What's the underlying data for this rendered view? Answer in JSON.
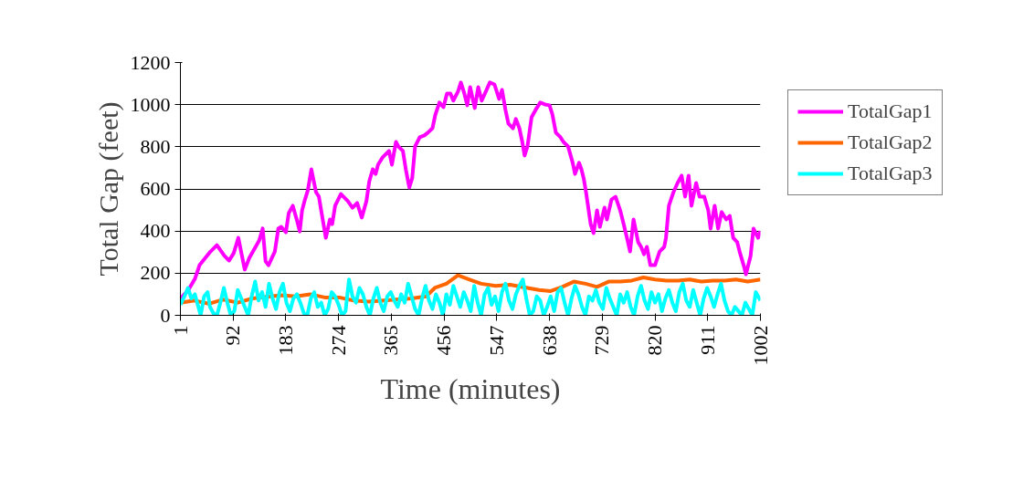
{
  "chart_data": {
    "type": "line",
    "xlabel": "Time (minutes)",
    "ylabel": "Total Gap (feet)",
    "xlim": [
      1,
      1002
    ],
    "xticks": [
      1,
      92,
      183,
      274,
      365,
      456,
      547,
      638,
      729,
      820,
      911,
      1002
    ],
    "ylim": [
      0,
      1200
    ],
    "yticks": [
      0,
      200,
      400,
      600,
      800,
      1000,
      1200
    ],
    "grid": "y",
    "legend": "right",
    "marker": "none",
    "line_style": "solid",
    "series": [
      {
        "name": "TotalGap1",
        "color": "#ff00ff",
        "x": [
          1,
          14,
          26,
          34,
          53,
          64,
          77,
          85,
          93,
          101,
          112,
          120,
          137,
          143,
          148,
          153,
          164,
          170,
          175,
          183,
          188,
          195,
          203,
          207,
          211,
          216,
          221,
          227,
          235,
          240,
          246,
          252,
          259,
          263,
          268,
          278,
          290,
          298,
          306,
          314,
          322,
          327,
          333,
          338,
          342,
          350,
          361,
          366,
          373,
          377,
          385,
          390,
          396,
          401,
          406,
          414,
          422,
          428,
          436,
          441,
          448,
          455,
          461,
          467,
          472,
          480,
          485,
          490,
          496,
          501,
          509,
          515,
          521,
          528,
          535,
          543,
          551,
          556,
          562,
          567,
          575,
          580,
          586,
          591,
          595,
          600,
          607,
          614,
          622,
          630,
          638,
          643,
          649,
          657,
          662,
          670,
          678,
          682,
          689,
          693,
          697,
          701,
          709,
          714,
          720,
          725,
          733,
          737,
          745,
          752,
          760,
          764,
          772,
          777,
          783,
          791,
          796,
          801,
          806,
          812,
          820,
          828,
          836,
          839,
          844,
          852,
          859,
          866,
          872,
          878,
          883,
          891,
          897,
          905,
          912,
          916,
          923,
          929,
          935,
          943,
          949,
          955,
          962,
          966,
          973,
          977,
          985,
          990,
          998,
          1002
        ],
        "values": [
          80,
          117,
          173,
          238,
          303,
          333,
          282,
          260,
          295,
          368,
          217,
          273,
          355,
          412,
          256,
          238,
          303,
          412,
          420,
          394,
          485,
          520,
          442,
          398,
          498,
          550,
          594,
          693,
          585,
          563,
          464,
          368,
          455,
          433,
          520,
          576,
          542,
          511,
          533,
          464,
          542,
          637,
          693,
          671,
          715,
          750,
          780,
          715,
          823,
          802,
          780,
          693,
          607,
          650,
          802,
          845,
          854,
          867,
          888,
          953,
          1010,
          988,
          1053,
          1053,
          1019,
          1062,
          1105,
          1062,
          997,
          1083,
          984,
          1083,
          1019,
          1062,
          1105,
          1096,
          1027,
          1070,
          975,
          910,
          888,
          932,
          888,
          823,
          758,
          802,
          940,
          975,
          1010,
          1001,
          997,
          953,
          867,
          845,
          823,
          802,
          724,
          671,
          724,
          693,
          650,
          585,
          433,
          390,
          498,
          420,
          511,
          455,
          550,
          563,
          498,
          455,
          364,
          303,
          455,
          347,
          325,
          290,
          325,
          238,
          238,
          303,
          325,
          368,
          520,
          585,
          628,
          663,
          563,
          663,
          520,
          628,
          563,
          563,
          498,
          412,
          520,
          412,
          490,
          455,
          472,
          368,
          347,
          303,
          238,
          195,
          282,
          412,
          368,
          400
        ]
      },
      {
        "name": "TotalGap2",
        "color": "#ff6600",
        "x": [
          1,
          25,
          50,
          75,
          100,
          125,
          175,
          200,
          225,
          250,
          275,
          300,
          325,
          400,
          425,
          440,
          460,
          480,
          500,
          520,
          545,
          570,
          600,
          620,
          640,
          660,
          680,
          700,
          720,
          740,
          760,
          780,
          800,
          820,
          840,
          860,
          880,
          900,
          920,
          940,
          960,
          980,
          1002
        ],
        "values": [
          60,
          70,
          55,
          75,
          60,
          80,
          95,
          90,
          100,
          85,
          85,
          70,
          65,
          80,
          90,
          130,
          150,
          190,
          170,
          150,
          140,
          145,
          130,
          120,
          115,
          135,
          160,
          150,
          135,
          160,
          160,
          165,
          180,
          170,
          165,
          165,
          170,
          160,
          165,
          165,
          170,
          160,
          170
        ]
      },
      {
        "name": "TotalGap3",
        "color": "#00ffff",
        "x": [
          1,
          8,
          14,
          20,
          26,
          32,
          36,
          42,
          48,
          52,
          58,
          64,
          70,
          76,
          82,
          88,
          94,
          100,
          106,
          112,
          118,
          124,
          130,
          136,
          142,
          148,
          154,
          160,
          166,
          172,
          178,
          184,
          190,
          196,
          202,
          208,
          214,
          220,
          226,
          232,
          238,
          244,
          250,
          256,
          262,
          268,
          274,
          280,
          286,
          292,
          298,
          304,
          310,
          316,
          322,
          328,
          334,
          340,
          346,
          352,
          358,
          364,
          370,
          376,
          382,
          388,
          394,
          400,
          406,
          412,
          418,
          424,
          430,
          436,
          442,
          448,
          454,
          460,
          466,
          472,
          478,
          484,
          490,
          496,
          502,
          508,
          514,
          520,
          526,
          532,
          538,
          544,
          550,
          556,
          562,
          568,
          574,
          580,
          586,
          592,
          598,
          604,
          610,
          616,
          622,
          628,
          634,
          640,
          646,
          652,
          658,
          664,
          670,
          676,
          682,
          688,
          694,
          700,
          706,
          712,
          718,
          724,
          730,
          736,
          742,
          748,
          754,
          760,
          766,
          772,
          778,
          784,
          790,
          796,
          802,
          808,
          814,
          820,
          826,
          832,
          838,
          844,
          850,
          856,
          862,
          868,
          874,
          880,
          886,
          892,
          898,
          904,
          910,
          916,
          922,
          928,
          934,
          940,
          946,
          952,
          958,
          964,
          970,
          976,
          982,
          988,
          994,
          1002
        ],
        "values": [
          50,
          90,
          130,
          80,
          100,
          40,
          0,
          90,
          110,
          40,
          10,
          0,
          60,
          130,
          60,
          0,
          20,
          120,
          80,
          40,
          0,
          90,
          160,
          70,
          110,
          40,
          150,
          80,
          30,
          110,
          150,
          60,
          20,
          80,
          100,
          60,
          10,
          0,
          80,
          110,
          40,
          60,
          0,
          30,
          110,
          90,
          50,
          0,
          20,
          170,
          90,
          60,
          130,
          100,
          40,
          0,
          80,
          130,
          60,
          20,
          90,
          110,
          70,
          40,
          100,
          60,
          150,
          90,
          30,
          0,
          80,
          140,
          70,
          30,
          100,
          60,
          0,
          100,
          50,
          140,
          90,
          40,
          110,
          70,
          20,
          140,
          60,
          0,
          100,
          130,
          50,
          90,
          20,
          110,
          150,
          70,
          30,
          100,
          140,
          170,
          80,
          0,
          20,
          90,
          70,
          0,
          40,
          90,
          20,
          110,
          130,
          60,
          0,
          80,
          140,
          100,
          40,
          0,
          90,
          70,
          120,
          60,
          30,
          130,
          80,
          40,
          0,
          100,
          60,
          110,
          40,
          0,
          90,
          140,
          70,
          30,
          110,
          60,
          100,
          20,
          80,
          120,
          60,
          20,
          110,
          150,
          70,
          40,
          120,
          60,
          0,
          80,
          130,
          90,
          40,
          100,
          150,
          70,
          20,
          0,
          40,
          20,
          0,
          60,
          30,
          0,
          110,
          70
        ]
      }
    ]
  }
}
